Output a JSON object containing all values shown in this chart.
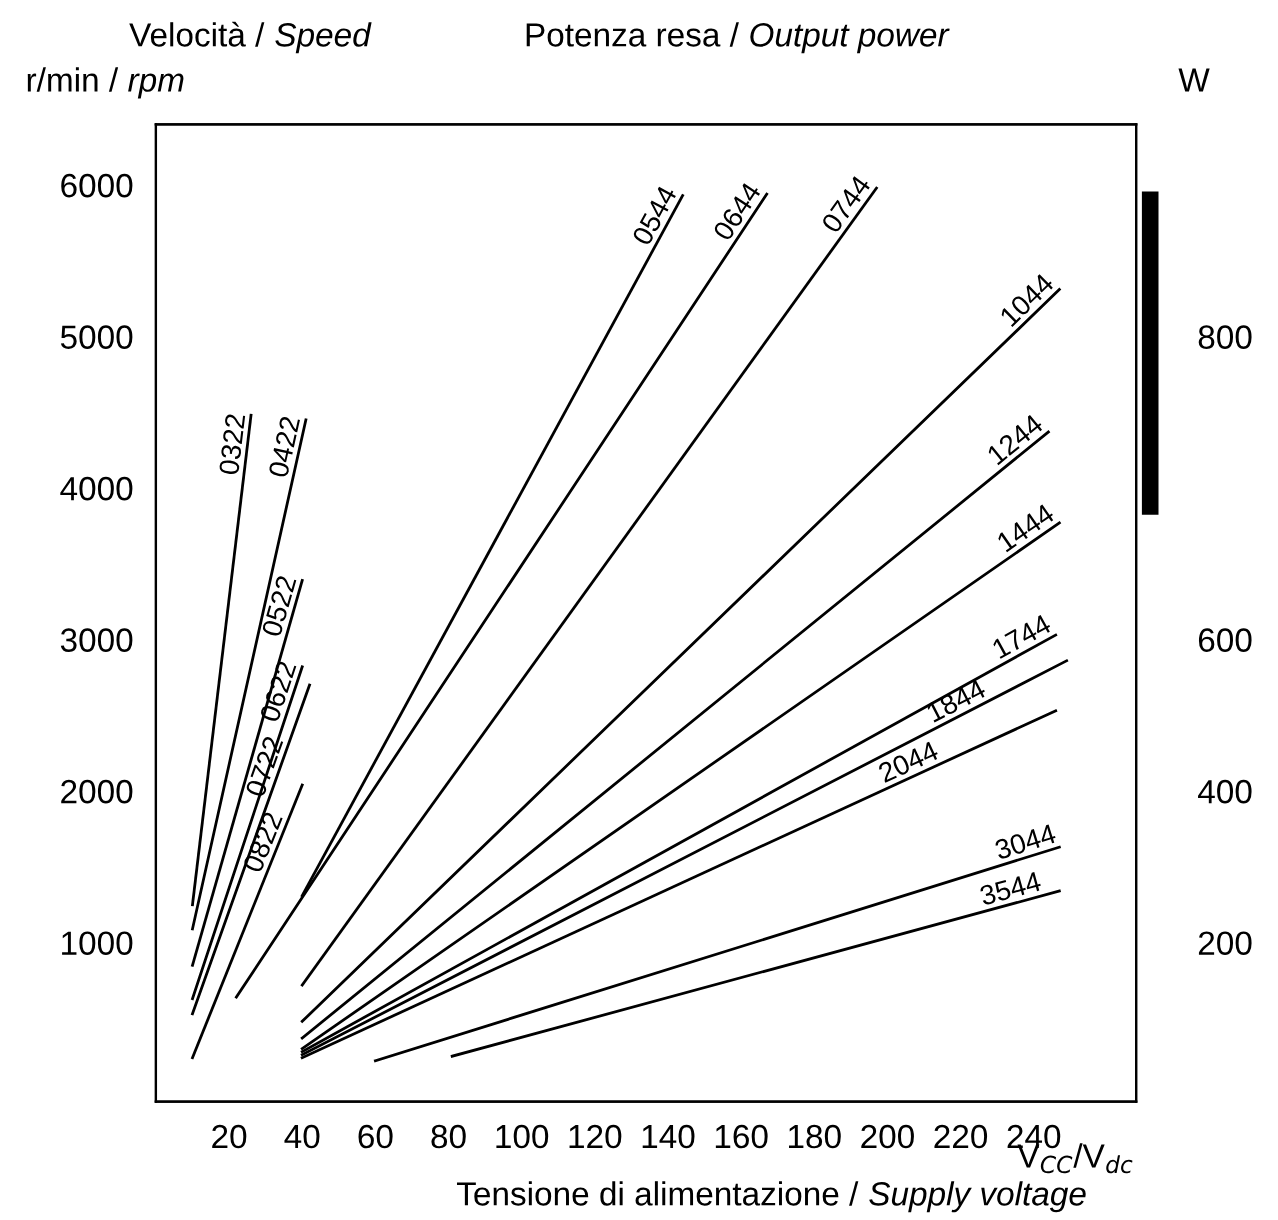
{
  "chart_data": {
    "type": "line",
    "ylabel": "Velocità / Speed",
    "y2label": "Potenza resa / Output power",
    "xlabel": "Tensione di alimentazione / Supply voltage",
    "annotations": [
      "r/min / rpm",
      "W",
      "V$_{CC}$/V$_{dc}$"
    ],
    "xlim": [
      0,
      268
    ],
    "xticks": [
      20,
      40,
      60,
      80,
      100,
      120,
      140,
      160,
      180,
      200,
      220,
      240
    ],
    "ylim": [
      -50,
      6400
    ],
    "yticks": [
      1000,
      2000,
      3000,
      4000,
      5000,
      6000
    ],
    "y2_categories": [
      "200",
      "400",
      "600",
      null,
      "800",
      null
    ],
    "grid": false,
    "legend": false,
    "marker": "none",
    "line_style": "solid",
    "series": [
      {
        "name": "0322",
        "color": "#000000",
        "x": [
          10,
          26
        ],
        "values": [
          1250,
          4480
        ]
      },
      {
        "name": "0422",
        "color": "#000000",
        "x": [
          10,
          41
        ],
        "values": [
          1090,
          4450
        ]
      },
      {
        "name": "0522",
        "color": "#000000",
        "x": [
          10,
          40
        ],
        "values": [
          850,
          3390
        ]
      },
      {
        "name": "0622",
        "color": "#000000",
        "x": [
          10,
          40
        ],
        "values": [
          630,
          2820
        ]
      },
      {
        "name": "0722",
        "color": "#000000",
        "x": [
          10,
          42
        ],
        "values": [
          530,
          2700
        ]
      },
      {
        "name": "0822",
        "color": "#000000",
        "x": [
          10,
          40
        ],
        "values": [
          240,
          2040
        ]
      },
      {
        "name": "0544",
        "color": "#000000",
        "x": [
          40,
          144
        ],
        "values": [
          1310,
          5930
        ]
      },
      {
        "name": "0644",
        "color": "#000000",
        "x": [
          22,
          167
        ],
        "values": [
          640,
          5940
        ]
      },
      {
        "name": "0744",
        "color": "#000000",
        "x": [
          40,
          197
        ],
        "values": [
          720,
          5980
        ]
      },
      {
        "name": "1044",
        "color": "#000000",
        "x": [
          40,
          247
        ],
        "values": [
          480,
          5310
        ]
      },
      {
        "name": "1244",
        "color": "#000000",
        "x": [
          40,
          244
        ],
        "values": [
          370,
          4370
        ]
      },
      {
        "name": "1444",
        "color": "#000000",
        "x": [
          40,
          247
        ],
        "values": [
          300,
          3770
        ]
      },
      {
        "name": "1744",
        "color": "#000000",
        "x": [
          40,
          246
        ],
        "values": [
          280,
          3030
        ]
      },
      {
        "name": "1844",
        "color": "#000000",
        "x": [
          40,
          249
        ],
        "values": [
          260,
          2860
        ]
      },
      {
        "name": "2044",
        "color": "#000000",
        "x": [
          40,
          246
        ],
        "values": [
          240,
          2530
        ]
      },
      {
        "name": "3044",
        "color": "#000000",
        "x": [
          60,
          247
        ],
        "values": [
          220,
          1630
        ]
      },
      {
        "name": "3544",
        "color": "#000000",
        "x": [
          81,
          247
        ],
        "values": [
          250,
          1340
        ]
      }
    ]
  }
}
